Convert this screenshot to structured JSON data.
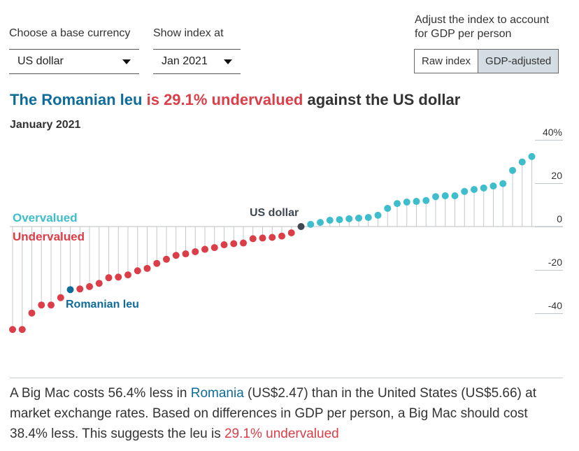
{
  "colors": {
    "overvalued": "#3ebdcc",
    "undervalued": "#db3e48",
    "highlight": "#0e6c9b",
    "base": "#3f4850",
    "stem": "#c4c9cc"
  },
  "controls": {
    "base_currency_label": "Choose a base currency",
    "base_currency_value": "US dollar",
    "date_label": "Show index at",
    "date_value": "Jan 2021",
    "adjust_label_line1": "Adjust the index to account",
    "adjust_label_line2": "for GDP per person",
    "raw_label": "Raw index",
    "gdp_label": "GDP-adjusted",
    "active_mode": "GDP-adjusted"
  },
  "headline": {
    "currency": "The Romanian leu",
    "valuation": "is 29.1% undervalued",
    "against": "against the US dollar"
  },
  "subtitle": "January 2021",
  "chart_data": {
    "type": "scatter",
    "ylim": [
      -48,
      40
    ],
    "yticks": [
      "40%",
      "20",
      "0",
      "-20",
      "-40"
    ],
    "ytick_values": [
      40,
      20,
      0,
      -20,
      -40
    ],
    "zone_labels": {
      "over": "Overvalued",
      "under": "Undervalued"
    },
    "annotations": {
      "base": "US dollar",
      "highlight": "Romanian leu"
    },
    "highlight_index": 6,
    "base_index": 30,
    "values": [
      -47.5,
      -47.5,
      -39.9,
      -36.2,
      -36.2,
      -32.8,
      -29.1,
      -28.8,
      -27.7,
      -26.2,
      -23.6,
      -23.3,
      -22.3,
      -20.4,
      -19.3,
      -17.0,
      -15.1,
      -13.3,
      -12.6,
      -11.6,
      -10.5,
      -9.7,
      -8.4,
      -7.9,
      -7.6,
      -5.6,
      -5.3,
      -5.0,
      -4.4,
      -2.9,
      0,
      1.0,
      1.9,
      2.9,
      3.2,
      3.6,
      3.9,
      4.2,
      5.2,
      8.4,
      10.6,
      11.3,
      11.6,
      12.0,
      13.8,
      14.2,
      14.2,
      16.2,
      17.1,
      17.8,
      18.7,
      19.8,
      25.9,
      29.8,
      32.3
    ]
  },
  "description": {
    "p1": "A Big Mac costs 56.4% less in ",
    "country": "Romania",
    "p2": " (US$2.47) than in the United States (US$5.66) at market exchange rates. Based on differences in GDP per person, a Big Mac should cost 38.4% less. This suggests the leu is ",
    "valuation": "29.1% undervalued"
  }
}
